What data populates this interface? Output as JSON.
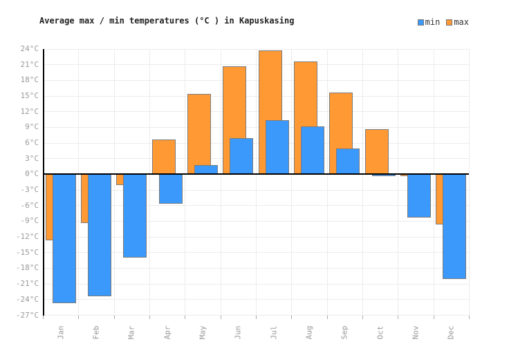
{
  "title": "Average max / min temperatures (°C ) in Kapuskasing",
  "legend": {
    "items": [
      {
        "label": "min",
        "color": "#3B99FC"
      },
      {
        "label": "max",
        "color": "#FF9934"
      }
    ]
  },
  "colors": {
    "min_bar": "#3B99FC",
    "max_bar": "#FF9934",
    "bar_border": "#7B7B7B",
    "grid": "#ECECEC",
    "axis": "#000000",
    "tick_label": "#999999",
    "title_text": "#222222",
    "background": "#FFFFFF"
  },
  "chart_data": {
    "type": "bar",
    "title": "Average max / min temperatures (°C ) in Kapuskasing",
    "categories": [
      "Jan",
      "Feb",
      "Mar",
      "Apr",
      "May",
      "Jun",
      "Jul",
      "Aug",
      "Sep",
      "Oct",
      "Nov",
      "Dec"
    ],
    "series": [
      {
        "name": "min",
        "color": "#3B99FC",
        "values": [
          -24.7,
          -23.4,
          -15.9,
          -5.6,
          1.8,
          7.0,
          10.4,
          9.2,
          5.0,
          -0.3,
          -8.3,
          -20.0
        ]
      },
      {
        "name": "max",
        "color": "#FF9934",
        "values": [
          -12.6,
          -9.3,
          -2.1,
          6.7,
          15.4,
          20.7,
          23.7,
          21.6,
          15.6,
          8.6,
          -0.4,
          -9.6
        ]
      }
    ],
    "xlabel": "",
    "ylabel": "",
    "y_tick_suffix": "°C",
    "ylim": [
      -27,
      24
    ],
    "ytick_step": 3,
    "grid": true,
    "legend_position": "top-right"
  }
}
